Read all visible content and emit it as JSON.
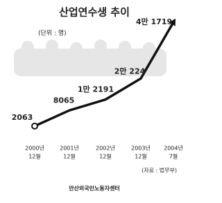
{
  "chart_data": {
    "type": "line",
    "title": "산업연수생 추이",
    "subtitle": "(단위 : 명)",
    "categories": [
      [
        "2000년",
        "12월"
      ],
      [
        "2001년",
        "12월"
      ],
      [
        "2002년",
        "12월"
      ],
      [
        "2003년",
        "12월"
      ],
      [
        "2004년",
        "7월"
      ]
    ],
    "values": [
      2063,
      8065,
      12191,
      20224,
      41719
    ],
    "value_labels": [
      "2063",
      "8065",
      "1만 2191",
      "2만 224",
      "4만 1719"
    ],
    "color": "#111111",
    "source": "(자료 : 법무부)",
    "footer": "안산외국인노동자센터"
  }
}
